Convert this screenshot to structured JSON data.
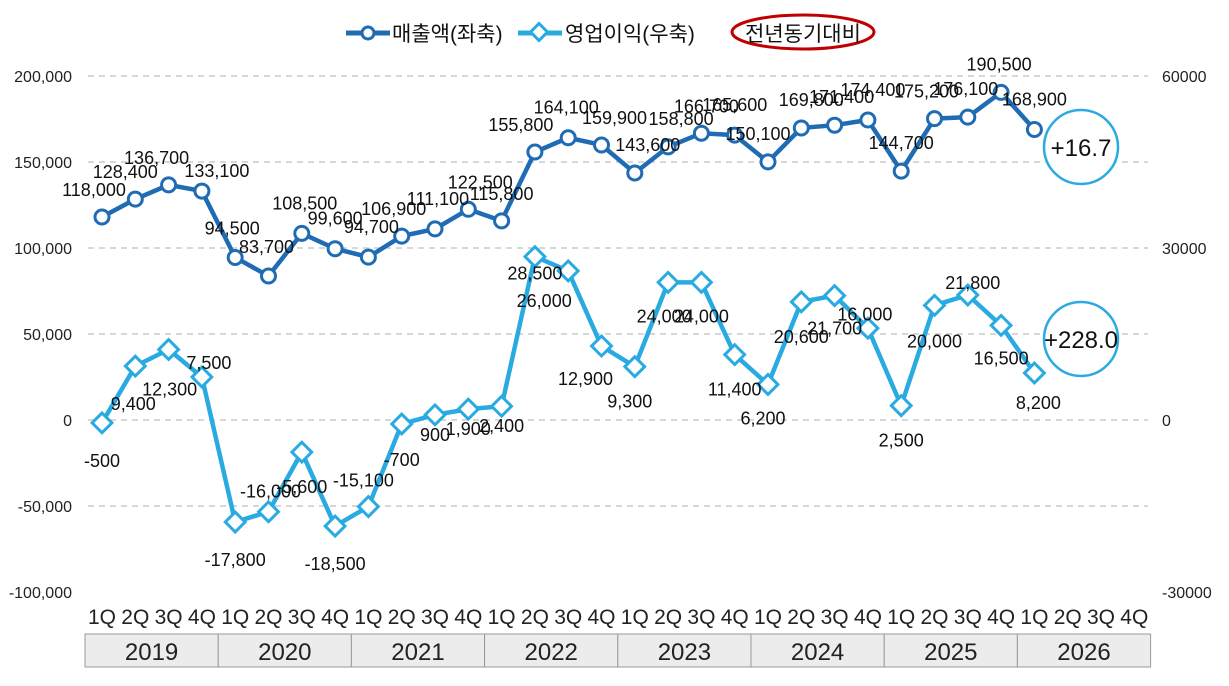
{
  "colors": {
    "revenue": "#1f6cb4",
    "op_income": "#29abe2",
    "highlight": "#c00000",
    "grid": "#bfbfbf",
    "year_box_bg": "#ececec"
  },
  "legend": {
    "revenue_label": "매출액(좌축)",
    "op_income_label": "영업이익(우축)",
    "yoy_label": "전년동기대비"
  },
  "badges": {
    "revenue_yoy": "+16.7",
    "op_income_yoy": "+228.0"
  },
  "chart_data": {
    "type": "line",
    "quarters": [
      "1Q",
      "2Q",
      "3Q",
      "4Q",
      "1Q",
      "2Q",
      "3Q",
      "4Q",
      "1Q",
      "2Q",
      "3Q",
      "4Q",
      "1Q",
      "2Q",
      "3Q",
      "4Q",
      "1Q",
      "2Q",
      "3Q",
      "4Q",
      "1Q",
      "2Q",
      "3Q",
      "4Q",
      "1Q",
      "2Q",
      "3Q",
      "4Q",
      "1Q",
      "2Q",
      "3Q",
      "4Q"
    ],
    "years": [
      "2019",
      "2020",
      "2021",
      "2022",
      "2023",
      "2024",
      "2025",
      "2026"
    ],
    "left_axis": {
      "min": -100000,
      "max": 200000,
      "ticks": [
        "200,000",
        "150,000",
        "100,000",
        "50,000",
        "0",
        "-50,000",
        "-100,000"
      ]
    },
    "right_axis": {
      "min": -30000,
      "max": 60000,
      "ticks": [
        "60000",
        "30000",
        "0",
        "-30000"
      ]
    },
    "grid": true,
    "legend_position": "top-center",
    "series": [
      {
        "name": "매출액(좌축)",
        "axis": "left",
        "values": [
          118000,
          128400,
          136700,
          133100,
          94500,
          83700,
          108500,
          99600,
          94700,
          106900,
          111100,
          122500,
          115800,
          155800,
          164100,
          159900,
          143600,
          158800,
          166700,
          165600,
          150100,
          169800,
          171400,
          174400,
          144700,
          175200,
          176100,
          190500,
          168900
        ],
        "labels": [
          "118,000",
          "128,400",
          "136,700",
          "133,100",
          "94,500",
          "83,700",
          "108,500",
          "99,600",
          "94,700",
          "106,900",
          "111,100",
          "122,500",
          "115,800",
          "155,800",
          "164,100",
          "159,900",
          "143,600",
          "158,800",
          "166,700",
          "165,600",
          "150,100",
          "169,800",
          "171,400",
          "174,400",
          "144,700",
          "175,200",
          "176,100",
          "190,500",
          "168,900"
        ]
      },
      {
        "name": "영업이익(우축)",
        "axis": "right",
        "values": [
          -500,
          9400,
          12300,
          7500,
          -17800,
          -16000,
          -5600,
          -18500,
          -15100,
          -700,
          900,
          1900,
          2400,
          28500,
          26000,
          12900,
          9300,
          24000,
          24000,
          11400,
          6200,
          20600,
          21700,
          16000,
          2500,
          20000,
          21800,
          16500,
          8200
        ],
        "labels": [
          "-500",
          "9,400",
          "12,300",
          "7,500",
          "-17,800",
          "-16,000",
          "-5,600",
          "-18,500",
          "-15,100",
          "-700",
          "900",
          "1,900",
          "2,400",
          "28,500",
          "26,000",
          "12,900",
          "9,300",
          "24,000",
          "24,000",
          "11,400",
          "6,200",
          "20,600",
          "21,700",
          "16,000",
          "2,500",
          "20,000",
          "21,800",
          "16,500",
          "8,200"
        ]
      }
    ]
  }
}
